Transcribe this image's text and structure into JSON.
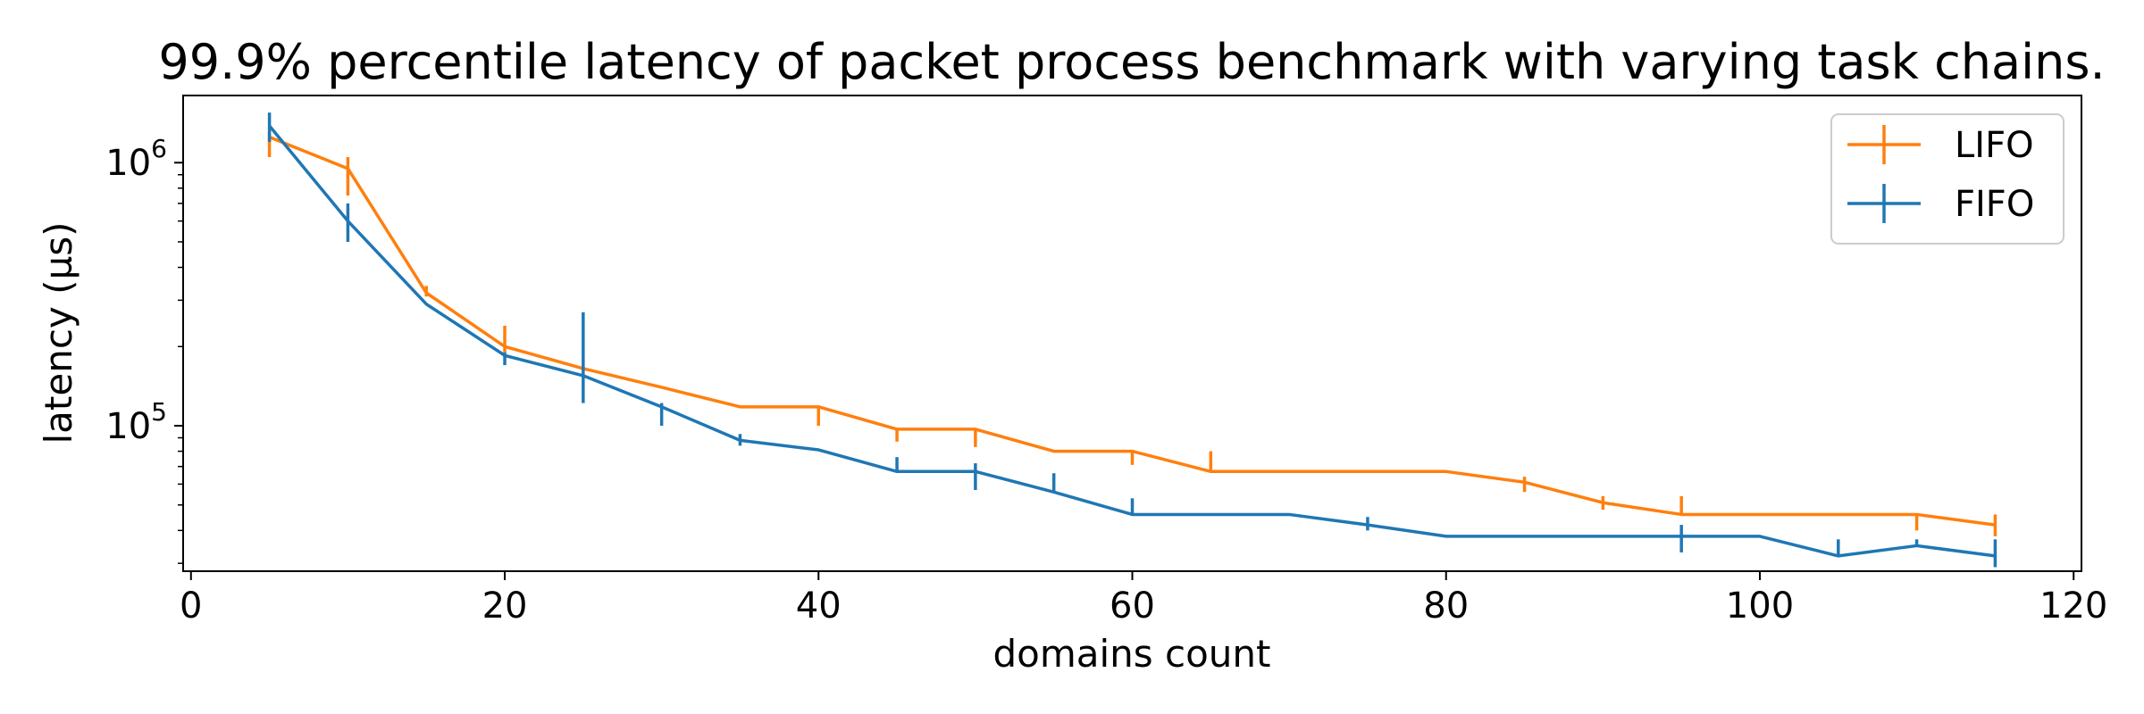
{
  "chart_data": {
    "type": "line",
    "title": "99.9% percentile latency of packet process benchmark with varying task chains.",
    "xlabel": "domains count",
    "ylabel": "latency (µs)",
    "xlim": [
      -0.5,
      120.5
    ],
    "ylim": [
      28000,
      1800000
    ],
    "yscale": "log",
    "xticks": [
      0,
      20,
      40,
      60,
      80,
      100,
      120
    ],
    "yticks": [
      {
        "value": 100000,
        "base": "10",
        "exp": "5"
      },
      {
        "value": 1000000,
        "base": "10",
        "exp": "6"
      }
    ],
    "legend_position": "top-right",
    "series": [
      {
        "name": "LIFO",
        "color": "#ff7f0e",
        "x": [
          5,
          10,
          15,
          20,
          25,
          30,
          35,
          40,
          45,
          50,
          55,
          60,
          65,
          70,
          75,
          80,
          85,
          90,
          95,
          100,
          105,
          110,
          115
        ],
        "y": [
          1250000,
          950000,
          320000,
          200000,
          165000,
          140000,
          118000,
          118000,
          97000,
          97000,
          80000,
          80000,
          67000,
          67000,
          67000,
          67000,
          61000,
          51000,
          46000,
          46000,
          46000,
          46000,
          42000
        ],
        "err_lo": [
          1050000,
          750000,
          310000,
          190000,
          165000,
          140000,
          118000,
          100000,
          87000,
          83000,
          80000,
          71000,
          67000,
          67000,
          67000,
          67000,
          56000,
          48000,
          46000,
          46000,
          46000,
          40000,
          38000
        ],
        "err_hi": [
          1300000,
          1050000,
          340000,
          240000,
          165000,
          140000,
          118000,
          118000,
          97000,
          97000,
          80000,
          80000,
          80000,
          67000,
          67000,
          67000,
          64000,
          54000,
          54000,
          46000,
          46000,
          46000,
          46000
        ]
      },
      {
        "name": "FIFO",
        "color": "#1f77b4",
        "x": [
          5,
          10,
          15,
          20,
          25,
          30,
          35,
          40,
          45,
          50,
          55,
          60,
          65,
          70,
          75,
          80,
          85,
          90,
          95,
          100,
          105,
          110,
          115
        ],
        "y": [
          1380000,
          600000,
          290000,
          185000,
          155000,
          118000,
          88000,
          81000,
          67000,
          67000,
          56000,
          46000,
          46000,
          46000,
          42000,
          38000,
          38000,
          38000,
          38000,
          38000,
          32000,
          35000,
          32000
        ],
        "err_lo": [
          1200000,
          500000,
          290000,
          170000,
          122000,
          100000,
          84000,
          81000,
          67000,
          57000,
          56000,
          46000,
          46000,
          46000,
          40000,
          38000,
          38000,
          38000,
          33000,
          38000,
          32000,
          35000,
          29000
        ],
        "err_hi": [
          1550000,
          700000,
          290000,
          190000,
          270000,
          122000,
          93000,
          81000,
          76000,
          72000,
          66000,
          53000,
          46000,
          46000,
          45000,
          38000,
          38000,
          38000,
          42000,
          38000,
          37000,
          37000,
          37000
        ]
      }
    ]
  }
}
